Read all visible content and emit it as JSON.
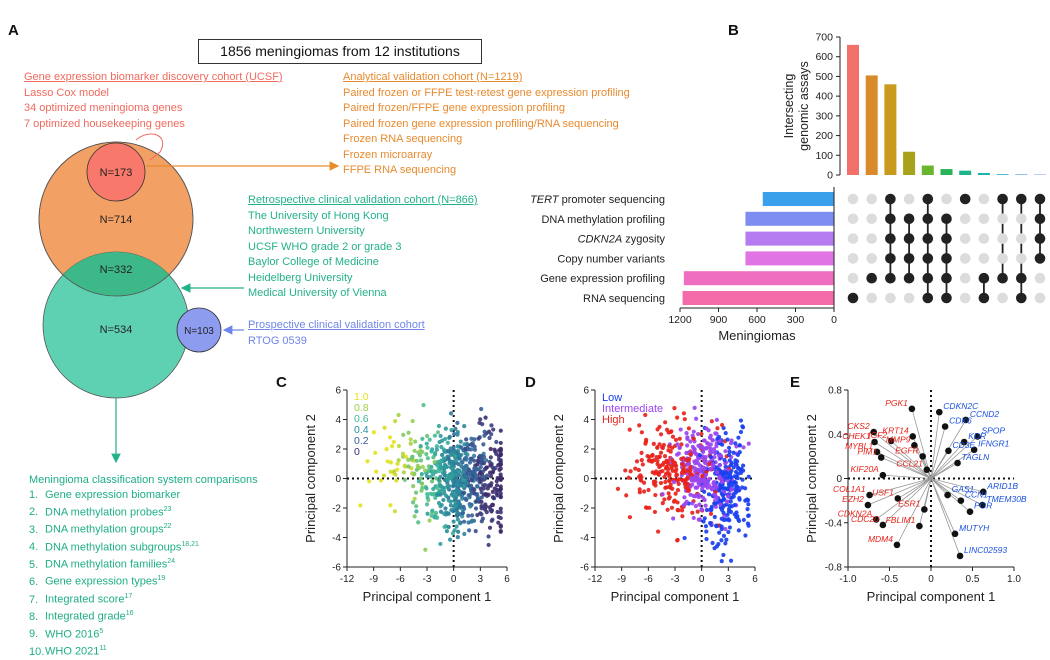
{
  "panel_a": {
    "letter": "A",
    "title": "1856 meningiomas from 12 institutions",
    "ucsf_cohort": {
      "heading": "Gene expression biomarker discovery cohort (UCSF)",
      "lines": [
        "Lasso Cox model",
        "34 optimized meningioma genes",
        "7 optimized housekeeping genes"
      ]
    },
    "analytical_cohort": {
      "heading": "Analytical validation cohort (N=1219)",
      "lines": [
        "Paired frozen or FFPE test-retest gene expression profiling",
        "Paired frozen/FFPE gene expression profiling",
        "Paired frozen gene expression profiling/RNA sequencing",
        "Frozen RNA sequencing",
        "Frozen microarray",
        "FFPE RNA sequencing"
      ]
    },
    "retrospective_cohort": {
      "heading": "Retrospective clinical validation cohort (N=866)",
      "lines": [
        "The University of Hong Kong",
        "Northwestern University",
        "UCSF WHO grade 2 or grade 3",
        "Baylor College of Medicine",
        "Heidelberg University",
        "Medical University of Vienna"
      ]
    },
    "prospective_cohort": {
      "heading": "Prospective clinical validation cohort",
      "lines": [
        "RTOG 0539"
      ]
    },
    "venn": {
      "n173": "N=173",
      "n714": "N=714",
      "n332": "N=332",
      "n534": "N=534",
      "n103": "N=103",
      "colors": {
        "ucsf": "#f8786b",
        "analytic": "#f2a064",
        "retro": "#5fd1b3",
        "overlap": "#3db989",
        "prosp": "#8e9cf0"
      }
    },
    "classification": {
      "heading": "Meningioma classification system comparisons",
      "items": [
        {
          "num": "1.",
          "text": "Gene expression biomarker",
          "sup": ""
        },
        {
          "num": "2.",
          "text": "DNA methylation probes",
          "sup": "23"
        },
        {
          "num": "3.",
          "text": "DNA methylation groups",
          "sup": "22"
        },
        {
          "num": "4.",
          "text": "DNA methylation subgroups",
          "sup": "18,21"
        },
        {
          "num": "5.",
          "text": "DNA methylation families",
          "sup": "24"
        },
        {
          "num": "6.",
          "text": "Gene expression types",
          "sup": "19"
        },
        {
          "num": "7.",
          "text": "Integrated score",
          "sup": "17"
        },
        {
          "num": "8.",
          "text": "Integrated grade",
          "sup": "16"
        },
        {
          "num": "9.",
          "text": "WHO 2016",
          "sup": "5"
        },
        {
          "num": "10.",
          "text": "WHO 2021",
          "sup": "11"
        }
      ]
    }
  },
  "chart_data": [
    {
      "panel": "B",
      "type": "bar",
      "subtype": "upset",
      "ylabel": "Intersecting genomic assays",
      "xlabel": "Meningiomas",
      "yticks": [
        0,
        100,
        200,
        300,
        400,
        500,
        600,
        700
      ],
      "intersection_values": [
        660,
        505,
        460,
        118,
        48,
        30,
        22,
        10,
        4,
        3,
        2
      ],
      "intersection_colors": [
        "#f2706a",
        "#d98a2a",
        "#c99a1e",
        "#a6a21a",
        "#6ab52e",
        "#27b356",
        "#1fb38a",
        "#1ab3a6",
        "#25a9c8",
        "#3b93e0",
        "#6a7ef0"
      ],
      "sets": [
        {
          "name": "TERT",
          "suffix": " promoter sequencing",
          "italic_part": "TERT",
          "value": 555,
          "color": "#3aa0ec"
        },
        {
          "name": "DNA methylation profiling",
          "suffix": "",
          "italic_part": "",
          "value": 690,
          "color": "#7e8ef0"
        },
        {
          "name": "CDKN2A",
          "suffix": " zygosity",
          "italic_part": "CDKN2A",
          "value": 690,
          "color": "#b47cf0"
        },
        {
          "name": "Copy number variants",
          "suffix": "",
          "italic_part": "",
          "value": 690,
          "color": "#df74e2"
        },
        {
          "name": "Gene expression profiling",
          "suffix": "",
          "italic_part": "",
          "value": 1170,
          "color": "#f06ec0"
        },
        {
          "name": "RNA sequencing",
          "suffix": "",
          "italic_part": "",
          "value": 1180,
          "color": "#f56aa8"
        }
      ],
      "xticks": [
        1200,
        900,
        600,
        300,
        0
      ],
      "xlim": [
        1200,
        0
      ],
      "ylim": [
        0,
        700
      ],
      "matrix": [
        [
          0,
          0,
          0,
          0,
          0,
          1
        ],
        [
          0,
          0,
          0,
          0,
          1,
          0
        ],
        [
          1,
          1,
          1,
          1,
          1,
          0
        ],
        [
          0,
          1,
          1,
          1,
          1,
          0
        ],
        [
          1,
          1,
          1,
          1,
          1,
          1
        ],
        [
          0,
          1,
          1,
          1,
          1,
          1
        ],
        [
          1,
          0,
          0,
          0,
          0,
          0
        ],
        [
          0,
          0,
          0,
          0,
          1,
          1
        ],
        [
          1,
          0,
          0,
          0,
          1,
          0
        ],
        [
          1,
          0,
          0,
          0,
          1,
          1
        ],
        [
          1,
          1,
          1,
          1,
          0,
          0
        ]
      ]
    },
    {
      "panel": "C",
      "type": "scatter",
      "xlabel": "Principal component 1",
      "ylabel": "Principal component 2",
      "xlim": [
        -12,
        6
      ],
      "ylim": [
        -6,
        6
      ],
      "xticks": [
        -12,
        -9,
        -6,
        -3,
        0,
        3,
        6
      ],
      "yticks": [
        -6,
        -4,
        -2,
        0,
        2,
        4,
        6
      ],
      "colorbar_labels": [
        "1.0",
        "0.8",
        "0.6",
        "0.4",
        "0.2",
        "0"
      ],
      "colorbar_colors": [
        "#e6e11c",
        "#9ed04a",
        "#3db99a",
        "#2b8f9c",
        "#365e99",
        "#3d2a6a"
      ],
      "points_generated": 700
    },
    {
      "panel": "D",
      "type": "scatter",
      "xlabel": "Principal component 1",
      "ylabel": "Principal component 2",
      "xlim": [
        -12,
        6
      ],
      "ylim": [
        -6,
        6
      ],
      "xticks": [
        -12,
        -9,
        -6,
        -3,
        0,
        3,
        6
      ],
      "yticks": [
        -6,
        -4,
        -2,
        0,
        2,
        4,
        6
      ],
      "legend": [
        {
          "name": "Low",
          "color": "#1a3ff0"
        },
        {
          "name": "Intermediate",
          "color": "#9a45f0"
        },
        {
          "name": "High",
          "color": "#e8231c"
        }
      ],
      "points_generated": 700
    },
    {
      "panel": "E",
      "type": "scatter",
      "subtype": "biplot",
      "xlabel": "Principal component 1",
      "ylabel": "Principal component 2",
      "xlim": [
        -1.0,
        1.0
      ],
      "ylim": [
        -0.8,
        0.8
      ],
      "xticks": [
        "-1.0",
        "-0.5",
        "0",
        "0.5",
        "1.0"
      ],
      "yticks": [
        "-0.8",
        "-0.4",
        "0",
        "0.4",
        "0.8"
      ],
      "loadings": [
        {
          "gene": "PGK1",
          "x": -0.23,
          "y": 0.63,
          "group": "high"
        },
        {
          "gene": "CKS2",
          "x": -0.69,
          "y": 0.42,
          "group": "high"
        },
        {
          "gene": "CHEK1",
          "x": -0.68,
          "y": 0.33,
          "group": "high"
        },
        {
          "gene": "MYBL1",
          "x": -0.65,
          "y": 0.24,
          "group": "high"
        },
        {
          "gene": "PIM1",
          "x": -0.6,
          "y": 0.19,
          "group": "high"
        },
        {
          "gene": "IGF2",
          "x": -0.48,
          "y": 0.34,
          "group": "high"
        },
        {
          "gene": "KRT14",
          "x": -0.22,
          "y": 0.38,
          "group": "high"
        },
        {
          "gene": "MMP9",
          "x": -0.2,
          "y": 0.3,
          "group": "high"
        },
        {
          "gene": "EGFR",
          "x": -0.1,
          "y": 0.2,
          "group": "high"
        },
        {
          "gene": "CCL21",
          "x": -0.05,
          "y": 0.08,
          "group": "high"
        },
        {
          "gene": "KIF20A",
          "x": -0.58,
          "y": 0.03,
          "group": "high"
        },
        {
          "gene": "COL1A1",
          "x": -0.74,
          "y": -0.15,
          "group": "high"
        },
        {
          "gene": "EZH2",
          "x": -0.76,
          "y": -0.24,
          "group": "high"
        },
        {
          "gene": "USF1",
          "x": -0.4,
          "y": -0.18,
          "group": "high"
        },
        {
          "gene": "ESR1",
          "x": -0.08,
          "y": -0.28,
          "group": "high"
        },
        {
          "gene": "CDKN2A",
          "x": -0.66,
          "y": -0.37,
          "group": "high"
        },
        {
          "gene": "CDC20",
          "x": -0.58,
          "y": -0.42,
          "group": "high"
        },
        {
          "gene": "FBLIM1",
          "x": -0.14,
          "y": -0.43,
          "group": "high"
        },
        {
          "gene": "MDM4",
          "x": -0.41,
          "y": -0.6,
          "group": "high"
        },
        {
          "gene": "CDKN2C",
          "x": 0.1,
          "y": 0.6,
          "group": "low"
        },
        {
          "gene": "CCND2",
          "x": 0.42,
          "y": 0.53,
          "group": "low"
        },
        {
          "gene": "CDK6",
          "x": 0.17,
          "y": 0.47,
          "group": "low"
        },
        {
          "gene": "SPOP",
          "x": 0.56,
          "y": 0.38,
          "group": "low"
        },
        {
          "gene": "KDR",
          "x": 0.4,
          "y": 0.33,
          "group": "low"
        },
        {
          "gene": "IFNGR1",
          "x": 0.52,
          "y": 0.26,
          "group": "low"
        },
        {
          "gene": "CD3E",
          "x": 0.21,
          "y": 0.25,
          "group": "low"
        },
        {
          "gene": "TAGLN",
          "x": 0.32,
          "y": 0.14,
          "group": "low"
        },
        {
          "gene": "ARID1B",
          "x": 0.63,
          "y": -0.12,
          "group": "low"
        },
        {
          "gene": "GAS1",
          "x": 0.2,
          "y": -0.15,
          "group": "low"
        },
        {
          "gene": "CCN1",
          "x": 0.36,
          "y": -0.2,
          "group": "low"
        },
        {
          "gene": "TMEM30B",
          "x": 0.62,
          "y": -0.24,
          "group": "low"
        },
        {
          "gene": "PGR",
          "x": 0.47,
          "y": -0.3,
          "group": "low"
        },
        {
          "gene": "MUTYH",
          "x": 0.29,
          "y": -0.5,
          "group": "low"
        },
        {
          "gene": "LINC02593",
          "x": 0.35,
          "y": -0.7,
          "group": "low"
        }
      ],
      "group_colors": {
        "high": "#e8231c",
        "low": "#1a50e0"
      }
    }
  ]
}
